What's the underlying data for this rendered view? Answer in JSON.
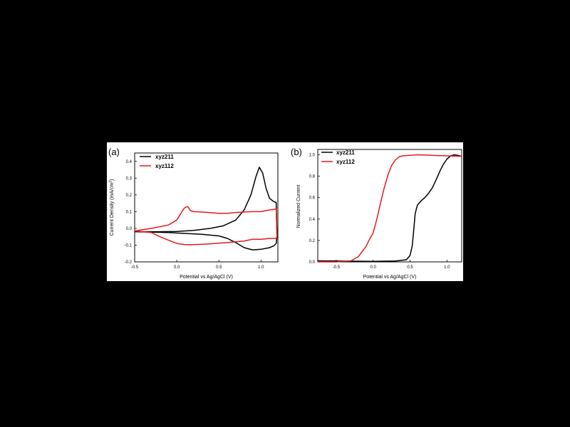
{
  "colors": {
    "series1": "#000000",
    "series2": "#e8191c",
    "background": "#000000",
    "panel": "#ffffff"
  },
  "chart_data": [
    {
      "type": "line",
      "panel_label": "(a)",
      "xlabel": "Potential vs Ag/AgCl (V)",
      "ylabel": "Current Density (mA/cm",
      "ylabel_sup": "2",
      "ylabel_end": ")",
      "xlim": [
        -0.5,
        1.2
      ],
      "ylim": [
        -0.2,
        0.45
      ],
      "xticks": [
        -0.5,
        0.0,
        0.5,
        1.0
      ],
      "xtick_labels": [
        "-0.5",
        "0.0",
        "0.5",
        "1.0"
      ],
      "yticks": [
        -0.2,
        -0.1,
        0.0,
        0.1,
        0.2,
        0.3,
        0.4
      ],
      "ytick_labels": [
        "-0.2",
        "-0.1",
        "0.0",
        "0.1",
        "0.2",
        "0.3",
        "0.4"
      ],
      "legend_position": "top-left",
      "series": [
        {
          "name": "xyz211",
          "color": "#000000",
          "x": [
            -0.5,
            -0.2,
            0.0,
            0.2,
            0.4,
            0.55,
            0.7,
            0.8,
            0.88,
            0.94,
            0.98,
            1.02,
            1.06,
            1.1,
            1.15,
            1.18,
            1.19,
            1.18,
            1.15,
            1.1,
            1.0,
            0.9,
            0.8,
            0.7,
            0.6,
            0.5,
            0.3,
            0.1,
            -0.1,
            -0.3,
            -0.5
          ],
          "y": [
            -0.02,
            -0.02,
            -0.018,
            -0.012,
            0.0,
            0.015,
            0.05,
            0.11,
            0.2,
            0.31,
            0.365,
            0.33,
            0.24,
            0.18,
            0.16,
            0.155,
            -0.05,
            -0.09,
            -0.105,
            -0.115,
            -0.125,
            -0.128,
            -0.115,
            -0.085,
            -0.06,
            -0.045,
            -0.035,
            -0.03,
            -0.025,
            -0.022,
            -0.02
          ]
        },
        {
          "name": "xyz112",
          "color": "#e8191c",
          "x": [
            -0.5,
            -0.3,
            -0.1,
            0.0,
            0.05,
            0.08,
            0.1,
            0.13,
            0.16,
            0.2,
            0.3,
            0.5,
            0.6,
            0.7,
            0.8,
            0.9,
            1.0,
            1.1,
            1.18,
            1.19,
            1.18,
            1.1,
            1.0,
            0.9,
            0.8,
            0.7,
            0.6,
            0.5,
            0.4,
            0.3,
            0.2,
            0.1,
            0.0,
            -0.1,
            -0.2,
            -0.3,
            -0.5
          ],
          "y": [
            -0.015,
            0.0,
            0.02,
            0.05,
            0.09,
            0.115,
            0.125,
            0.13,
            0.108,
            0.1,
            0.098,
            0.09,
            0.09,
            0.095,
            0.098,
            0.1,
            0.1,
            0.11,
            0.115,
            -0.05,
            -0.06,
            -0.06,
            -0.065,
            -0.065,
            -0.075,
            -0.08,
            -0.085,
            -0.088,
            -0.092,
            -0.095,
            -0.097,
            -0.097,
            -0.09,
            -0.07,
            -0.05,
            -0.025,
            -0.015
          ]
        }
      ]
    },
    {
      "type": "line",
      "panel_label": "(b)",
      "xlabel": "Potential vs Ag/AgCl (V)",
      "ylabel": "Normalized Current",
      "xlim": [
        -0.75,
        1.2
      ],
      "ylim": [
        0.0,
        1.05
      ],
      "xticks": [
        -0.5,
        0.0,
        0.5,
        1.0
      ],
      "xtick_labels": [
        "-0.5",
        "0.0",
        "0.5",
        "1.0"
      ],
      "yticks": [
        0.0,
        0.2,
        0.4,
        0.6,
        0.8,
        1.0
      ],
      "ytick_labels": [
        "0.0",
        "0.2",
        "0.4",
        "0.6",
        "0.8",
        "1.0"
      ],
      "legend_position": "top-left",
      "series": [
        {
          "name": "xyz211",
          "color": "#000000",
          "x": [
            -0.75,
            -0.5,
            0.0,
            0.3,
            0.45,
            0.5,
            0.53,
            0.55,
            0.57,
            0.6,
            0.65,
            0.7,
            0.75,
            0.8,
            0.85,
            0.9,
            0.95,
            1.0,
            1.05,
            1.1,
            1.15,
            1.2
          ],
          "y": [
            0.01,
            0.008,
            0.005,
            0.008,
            0.02,
            0.06,
            0.15,
            0.3,
            0.45,
            0.53,
            0.57,
            0.6,
            0.64,
            0.69,
            0.76,
            0.84,
            0.91,
            0.96,
            0.99,
            1.0,
            0.995,
            0.985
          ],
          "y_note": "values only, read from plot"
        },
        {
          "name": "xyz112",
          "color": "#e8191c",
          "x": [
            -0.75,
            -0.5,
            -0.3,
            -0.2,
            -0.1,
            -0.05,
            0.0,
            0.05,
            0.1,
            0.15,
            0.2,
            0.25,
            0.3,
            0.35,
            0.4,
            0.5,
            0.6,
            0.8,
            1.0,
            1.2
          ],
          "y": [
            0.0,
            0.0,
            0.01,
            0.05,
            0.14,
            0.21,
            0.27,
            0.4,
            0.55,
            0.69,
            0.81,
            0.9,
            0.95,
            0.98,
            0.99,
            0.995,
            1.0,
            0.995,
            0.99,
            0.985
          ]
        }
      ]
    }
  ]
}
